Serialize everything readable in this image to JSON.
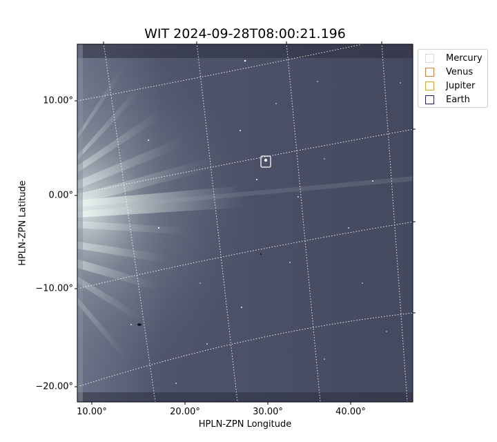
{
  "title": "WIT 2024-09-28T08:00:21.196",
  "x_axis_label": "HPLN-ZPN Longitude",
  "y_axis_label": "HPLN-ZPN Latitude",
  "x_ticks": [
    "10.00°",
    "20.00°",
    "30.00°",
    "40.00°"
  ],
  "y_ticks": [
    "10.00°",
    "0.00°",
    "−10.00°",
    "−20.00°"
  ],
  "legend": [
    {
      "label": "Mercury",
      "color": "#d9d9d9"
    },
    {
      "label": "Venus",
      "color": "#e07b39"
    },
    {
      "label": "Jupiter",
      "color": "#e0a020"
    },
    {
      "label": "Earth",
      "color": "#1a1a80"
    }
  ],
  "colors": {
    "sky": "#474b63",
    "streamer": "#d8e7e4"
  }
}
